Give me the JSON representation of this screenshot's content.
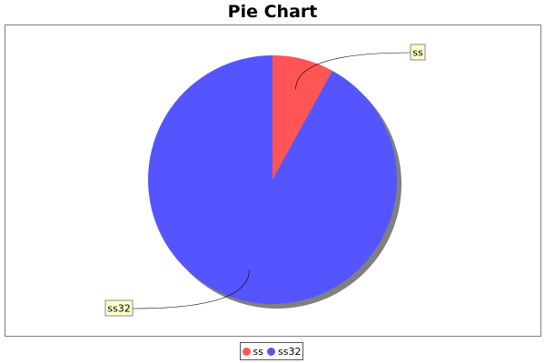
{
  "chart_data": {
    "type": "pie",
    "title": "Pie Chart",
    "slices": [
      {
        "label": "ss",
        "value": 8,
        "color": "#ff5555"
      },
      {
        "label": "ss32",
        "value": 92,
        "color": "#5555ff"
      }
    ],
    "legend": {
      "placement": "bottom",
      "entries": [
        "ss",
        "ss32"
      ]
    },
    "start_angle_deg": 90,
    "direction": "clockwise",
    "label_style": {
      "background": "#ffffcc",
      "border": "#888888"
    },
    "shadow_color": "#808080"
  }
}
